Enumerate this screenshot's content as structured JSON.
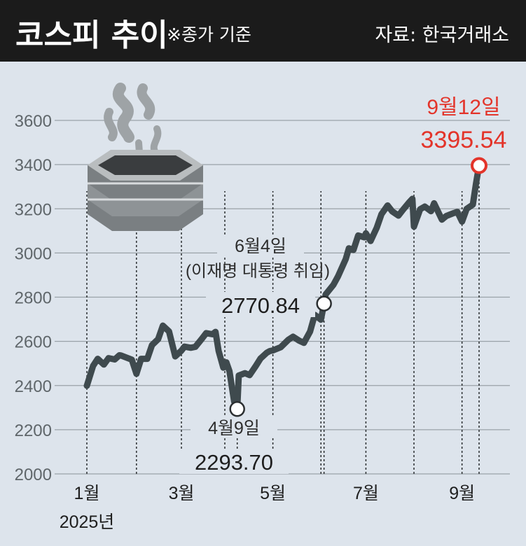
{
  "header": {
    "title": "코스피 추이",
    "subtitle": "※종가 기준",
    "source": "자료: 한국거래소"
  },
  "colors": {
    "header_bg": "#1b1b1b",
    "plot_bg": "#dde4ec",
    "line": "#3f4a4e",
    "grid": "#9aa2a8",
    "highlight": "#e3342a"
  },
  "icon": "stock-heating-pot-icon",
  "chart_data": {
    "type": "line",
    "ylim": [
      2000,
      3700
    ],
    "yticks": [
      2000,
      2200,
      2400,
      2600,
      2800,
      3000,
      3200,
      3400,
      3600
    ],
    "xticks": [
      {
        "label": "1월",
        "date": "2025-01-02"
      },
      {
        "label": "3월",
        "date": "2025-03-04"
      },
      {
        "label": "5월",
        "date": "2025-05-02"
      },
      {
        "label": "7월",
        "date": "2025-07-01"
      },
      {
        "label": "9월",
        "date": "2025-09-01"
      }
    ],
    "xtick_dates_no_label": [
      "2025-02-03",
      "2025-04-01",
      "2025-06-02",
      "2025-08-01"
    ],
    "year_label": "2025년",
    "series": [
      {
        "points": [
          [
            "2025-01-02",
            2399
          ],
          [
            "2025-01-06",
            2489
          ],
          [
            "2025-01-09",
            2521
          ],
          [
            "2025-01-13",
            2495
          ],
          [
            "2025-01-16",
            2524
          ],
          [
            "2025-01-20",
            2518
          ],
          [
            "2025-01-23",
            2537
          ],
          [
            "2025-01-24",
            2536
          ],
          [
            "2025-01-31",
            2517
          ],
          [
            "2025-02-03",
            2453
          ],
          [
            "2025-02-06",
            2521
          ],
          [
            "2025-02-10",
            2521
          ],
          [
            "2025-02-13",
            2583
          ],
          [
            "2025-02-17",
            2610
          ],
          [
            "2025-02-20",
            2671
          ],
          [
            "2025-02-24",
            2645
          ],
          [
            "2025-02-28",
            2532
          ],
          [
            "2025-03-04",
            2558
          ],
          [
            "2025-03-06",
            2576
          ],
          [
            "2025-03-10",
            2571
          ],
          [
            "2025-03-13",
            2575
          ],
          [
            "2025-03-17",
            2610
          ],
          [
            "2025-03-20",
            2637
          ],
          [
            "2025-03-24",
            2632
          ],
          [
            "2025-03-26",
            2643
          ],
          [
            "2025-03-28",
            2557
          ],
          [
            "2025-03-31",
            2481
          ],
          [
            "2025-04-02",
            2505
          ],
          [
            "2025-04-04",
            2465
          ],
          [
            "2025-04-07",
            2328
          ],
          [
            "2025-04-09",
            2293.7
          ],
          [
            "2025-04-10",
            2445
          ],
          [
            "2025-04-14",
            2456
          ],
          [
            "2025-04-17",
            2447
          ],
          [
            "2025-04-21",
            2489
          ],
          [
            "2025-04-24",
            2522
          ],
          [
            "2025-04-28",
            2548
          ],
          [
            "2025-04-30",
            2556
          ],
          [
            "2025-05-02",
            2559
          ],
          [
            "2025-05-07",
            2573
          ],
          [
            "2025-05-12",
            2607
          ],
          [
            "2025-05-15",
            2621
          ],
          [
            "2025-05-19",
            2603
          ],
          [
            "2025-05-22",
            2593
          ],
          [
            "2025-05-26",
            2644
          ],
          [
            "2025-05-29",
            2720
          ],
          [
            "2025-06-02",
            2698
          ],
          [
            "2025-06-04",
            2770.84
          ],
          [
            "2025-06-05",
            2812
          ],
          [
            "2025-06-10",
            2855
          ],
          [
            "2025-06-13",
            2894
          ],
          [
            "2025-06-18",
            2972
          ],
          [
            "2025-06-20",
            3021
          ],
          [
            "2025-06-23",
            3014
          ],
          [
            "2025-06-26",
            3079
          ],
          [
            "2025-06-30",
            3071
          ],
          [
            "2025-07-01",
            3089
          ],
          [
            "2025-07-04",
            3054
          ],
          [
            "2025-07-08",
            3114
          ],
          [
            "2025-07-11",
            3175
          ],
          [
            "2025-07-15",
            3215
          ],
          [
            "2025-07-18",
            3188
          ],
          [
            "2025-07-22",
            3169
          ],
          [
            "2025-07-25",
            3196
          ],
          [
            "2025-07-29",
            3230
          ],
          [
            "2025-07-31",
            3245
          ],
          [
            "2025-08-01",
            3119
          ],
          [
            "2025-08-05",
            3198
          ],
          [
            "2025-08-08",
            3210
          ],
          [
            "2025-08-12",
            3189
          ],
          [
            "2025-08-14",
            3225
          ],
          [
            "2025-08-19",
            3151
          ],
          [
            "2025-08-22",
            3168
          ],
          [
            "2025-08-26",
            3179
          ],
          [
            "2025-08-29",
            3186
          ],
          [
            "2025-09-01",
            3142
          ],
          [
            "2025-09-04",
            3200
          ],
          [
            "2025-09-08",
            3219
          ],
          [
            "2025-09-10",
            3314
          ],
          [
            "2025-09-12",
            3395.54
          ]
        ]
      }
    ],
    "annotations": [
      {
        "date": "2025-04-09",
        "value": 2293.7,
        "label": "4월9일",
        "value_label": "2293.70"
      },
      {
        "date": "2025-06-04",
        "value": 2770.84,
        "label": "6월4일",
        "sublabel": "(이재명 대통령 취임)",
        "value_label": "2770.84"
      },
      {
        "date": "2025-09-12",
        "value": 3395.54,
        "label": "9월12일",
        "value_label": "3395.54",
        "highlight": true
      }
    ]
  }
}
